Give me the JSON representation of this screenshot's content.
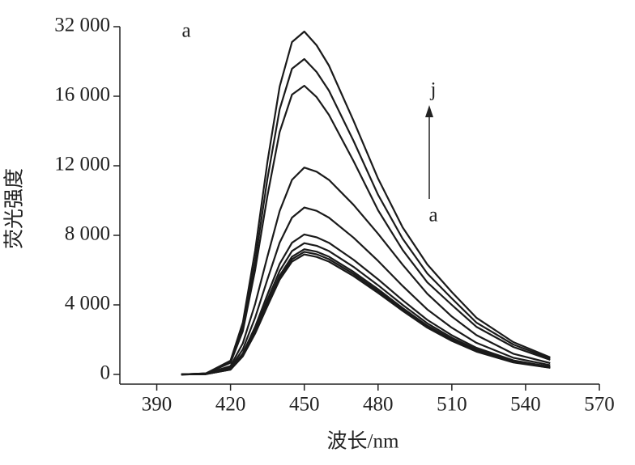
{
  "chart_data": {
    "type": "line",
    "x_label": "波长/nm",
    "y_label": "荧光强度",
    "annotations": [
      "a",
      "j",
      "a"
    ],
    "color": "#1a1a1a",
    "xlim": [
      375,
      570
    ],
    "xticks": [
      390,
      420,
      450,
      480,
      510,
      540,
      570
    ],
    "ylim": [
      0,
      32000
    ],
    "yticks": [
      0,
      {
        "value": 4000,
        "label": "4 000"
      },
      {
        "value": 8000,
        "label": "8 000"
      },
      {
        "value": 12000,
        "label": "12 000"
      },
      {
        "value": 16000,
        "label": "16 000"
      },
      {
        "value": 32000,
        "label": "32 000"
      }
    ],
    "x": [
      400,
      410,
      420,
      425,
      430,
      435,
      440,
      445,
      450,
      455,
      460,
      470,
      480,
      490,
      500,
      510,
      520,
      535,
      550
    ],
    "series": [
      {
        "values": [
          0,
          20,
          280,
          1040,
          2350,
          3930,
          5450,
          6490,
          6900,
          6760,
          6490,
          5660,
          4690,
          3660,
          2690,
          1930,
          1310,
          690,
          380
        ]
      },
      {
        "values": [
          0,
          20,
          280,
          1060,
          2400,
          4020,
          5570,
          6630,
          7050,
          6910,
          6630,
          5780,
          4790,
          3740,
          2750,
          1970,
          1340,
          710,
          390
        ]
      },
      {
        "values": [
          0,
          20,
          290,
          1080,
          2450,
          4100,
          5690,
          6770,
          7200,
          7060,
          6770,
          5900,
          4900,
          3820,
          2810,
          2020,
          1370,
          720,
          400
        ]
      },
      {
        "values": [
          0,
          20,
          300,
          1130,
          2570,
          4300,
          5960,
          7100,
          7550,
          7400,
          7100,
          6190,
          5130,
          4000,
          2940,
          2110,
          1430,
          760,
          420
        ]
      },
      {
        "values": [
          0,
          20,
          320,
          1210,
          2740,
          4590,
          6360,
          7570,
          8050,
          7890,
          7570,
          6600,
          5470,
          4270,
          3140,
          2250,
          1530,
          810,
          440
        ]
      },
      {
        "values": [
          0,
          30,
          380,
          1440,
          3260,
          5470,
          7580,
          9020,
          9600,
          9410,
          9020,
          7870,
          6530,
          5090,
          3740,
          2690,
          1820,
          960,
          530
        ]
      },
      {
        "values": [
          0,
          40,
          480,
          1790,
          4050,
          6780,
          9400,
          11190,
          11900,
          11660,
          11190,
          9760,
          8090,
          6310,
          4640,
          3330,
          2260,
          1190,
          650
        ]
      },
      {
        "values": [
          0,
          50,
          670,
          2490,
          6000,
          10280,
          13950,
          16370,
          18420,
          15950,
          14930,
          12280,
          9440,
          7160,
          5300,
          4000,
          2740,
          1580,
          840
        ]
      },
      {
        "values": [
          0,
          60,
          730,
          2720,
          6510,
          11260,
          15250,
          22330,
          24560,
          21580,
          17300,
          13440,
          10330,
          7810,
          5810,
          4370,
          2980,
          1720,
          910
        ]
      },
      {
        "values": [
          0,
          60,
          790,
          2980,
          7120,
          12230,
          18230,
          28470,
          30880,
          27720,
          23070,
          14600,
          11260,
          8460,
          6330,
          4740,
          3260,
          1860,
          980
        ]
      }
    ]
  }
}
